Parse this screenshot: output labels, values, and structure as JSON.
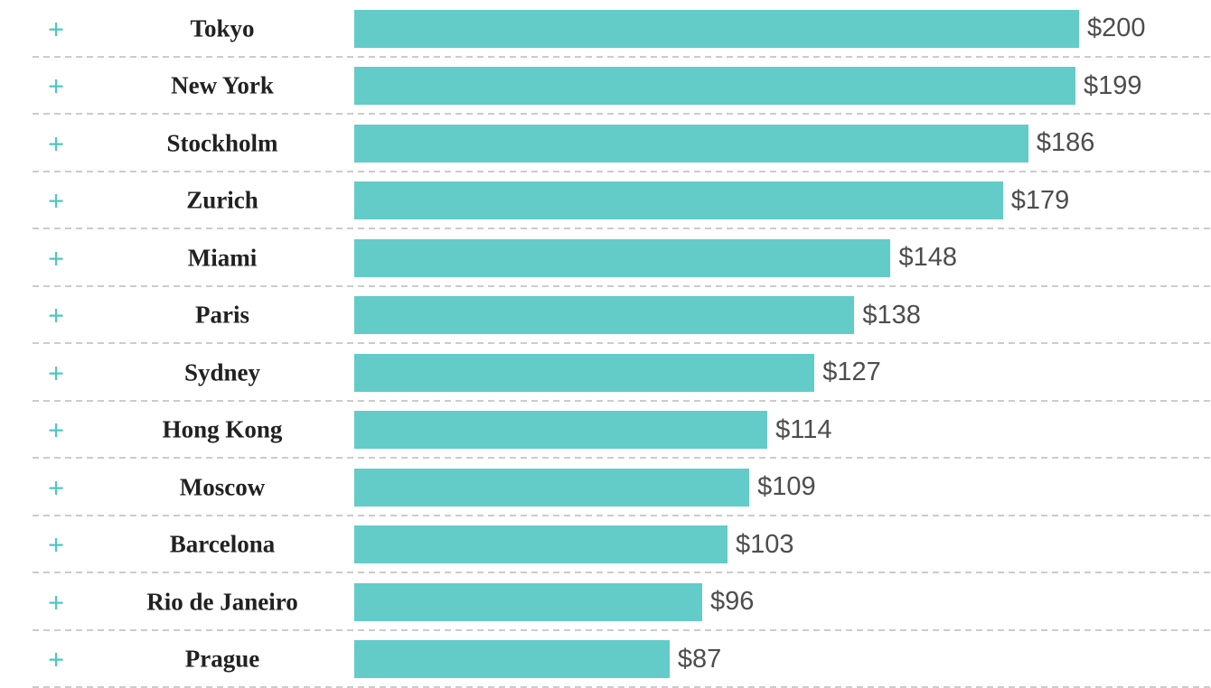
{
  "chart_data": {
    "type": "bar",
    "orientation": "horizontal",
    "title": "",
    "xlabel": "",
    "ylabel": "",
    "xlim": [
      0,
      200
    ],
    "grid": "off",
    "legend": "none",
    "categories": [
      "Tokyo",
      "New York",
      "Stockholm",
      "Zurich",
      "Miami",
      "Paris",
      "Sydney",
      "Hong Kong",
      "Moscow",
      "Barcelona",
      "Rio de Janeiro",
      "Prague"
    ],
    "values": [
      200,
      199,
      186,
      179,
      148,
      138,
      127,
      114,
      109,
      103,
      96,
      87
    ],
    "value_labels": [
      "$200",
      "$199",
      "$186",
      "$179",
      "$148",
      "$138",
      "$127",
      "$114",
      "$109",
      "$103",
      "$96",
      "$87"
    ],
    "value_prefix": "$"
  },
  "row": {
    "expand_icon": "+"
  },
  "colors": {
    "bar": "#63cbc8",
    "expand_icon": "#4fc7c2",
    "category_text": "#212121",
    "value_text": "#4d4d4d",
    "separator": "#cccccc",
    "background": "#ffffff"
  }
}
